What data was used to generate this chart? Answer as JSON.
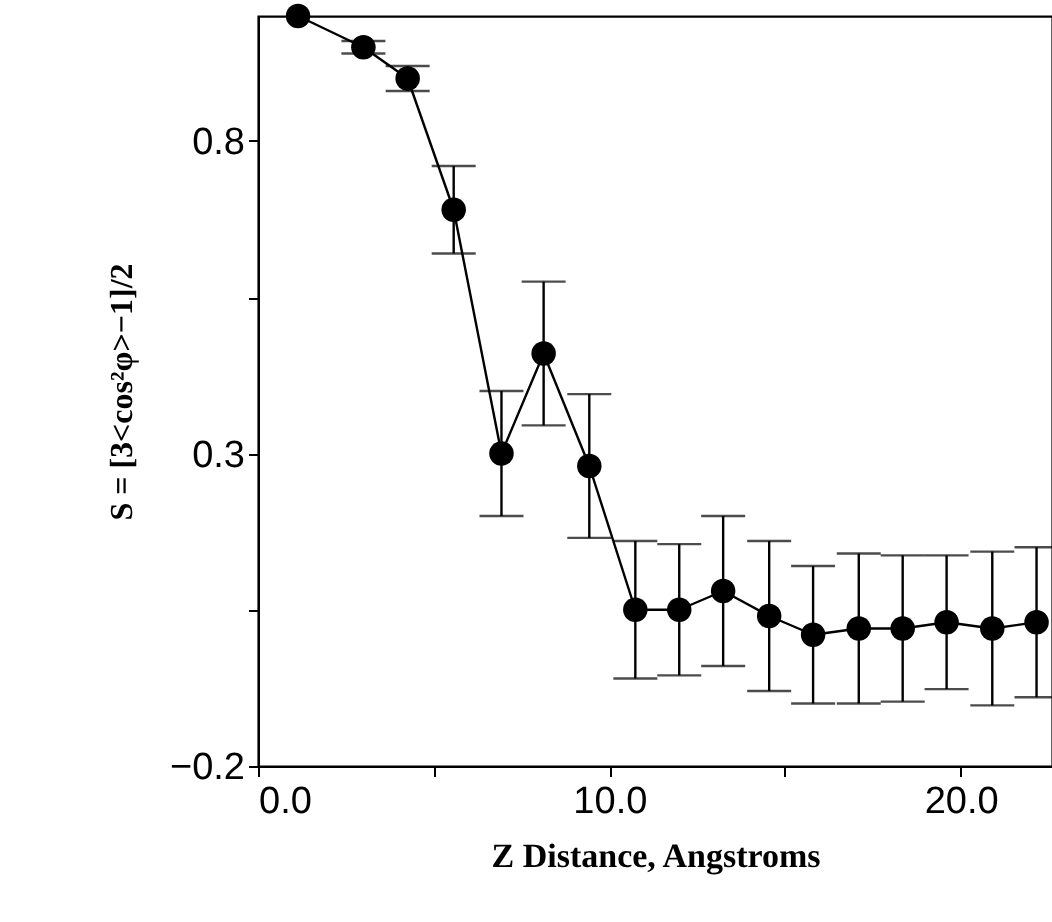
{
  "chart_data": {
    "type": "line",
    "xlabel": "Z Distance, Angstroms",
    "ylabel": "S = [3<cos²φ>−1]/2",
    "xlim": [
      0,
      22.6
    ],
    "ylim": [
      -0.2,
      1.0
    ],
    "xticks": [
      {
        "value": 0,
        "label": "0.0"
      },
      {
        "value": 5,
        "label": null
      },
      {
        "value": 10,
        "label": "10.0"
      },
      {
        "value": 15,
        "label": null
      },
      {
        "value": 20,
        "label": "20.0"
      }
    ],
    "yticks": [
      {
        "value": -0.2,
        "label": "−0.2"
      },
      {
        "value": 0.05,
        "label": null
      },
      0.3,
      {
        "value": 0.55,
        "label": null
      },
      0.8
    ],
    "x": [
      1.14,
      3.0,
      4.26,
      5.57,
      6.93,
      8.13,
      9.43,
      10.74,
      11.99,
      13.24,
      14.55,
      15.8,
      17.1,
      18.35,
      19.6,
      20.9,
      22.16
    ],
    "series": [
      {
        "color": "#000000",
        "values": [
          1.0,
          0.95,
          0.9,
          0.69,
          0.3,
          0.46,
          0.28,
          0.05,
          0.05,
          0.08,
          0.04,
          0.01,
          0.02,
          0.02,
          0.03,
          0.02,
          0.03
        ],
        "errors": [
          null,
          0.01,
          0.02,
          0.07,
          0.1,
          0.115,
          0.115,
          0.11,
          0.105,
          0.12,
          0.12,
          0.11,
          0.12,
          0.117,
          0.107,
          0.123,
          0.12
        ]
      }
    ],
    "marker": "circle",
    "line_style": "solid",
    "grid": false
  }
}
